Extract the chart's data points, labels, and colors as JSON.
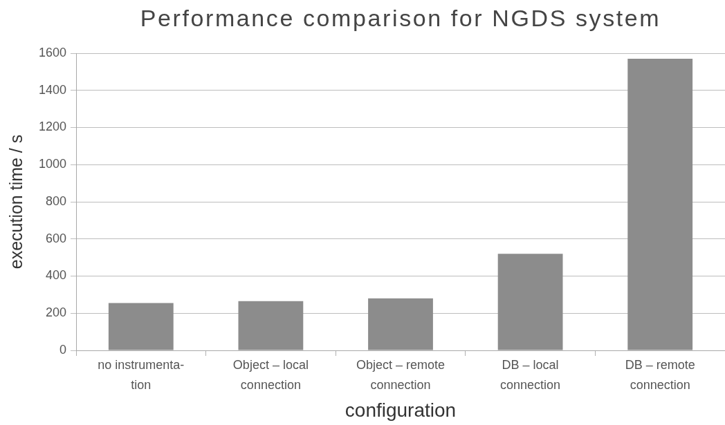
{
  "chart_data": {
    "type": "bar",
    "title": "Performance comparison for NGDS system",
    "xlabel": "configuration",
    "ylabel": "execution time / s",
    "categories": [
      "no instrumenta-\ntion",
      "Object – local\nconnection",
      "Object – remote\nconnection",
      "DB – local\nconnection",
      "DB – remote\nconnection"
    ],
    "values": [
      255,
      265,
      280,
      520,
      1570
    ],
    "color": "#8c8c8c",
    "ylim": [
      0,
      1600
    ],
    "yticks": [
      0,
      200,
      400,
      600,
      800,
      1000,
      1200,
      1400,
      1600
    ],
    "grid": "y"
  }
}
